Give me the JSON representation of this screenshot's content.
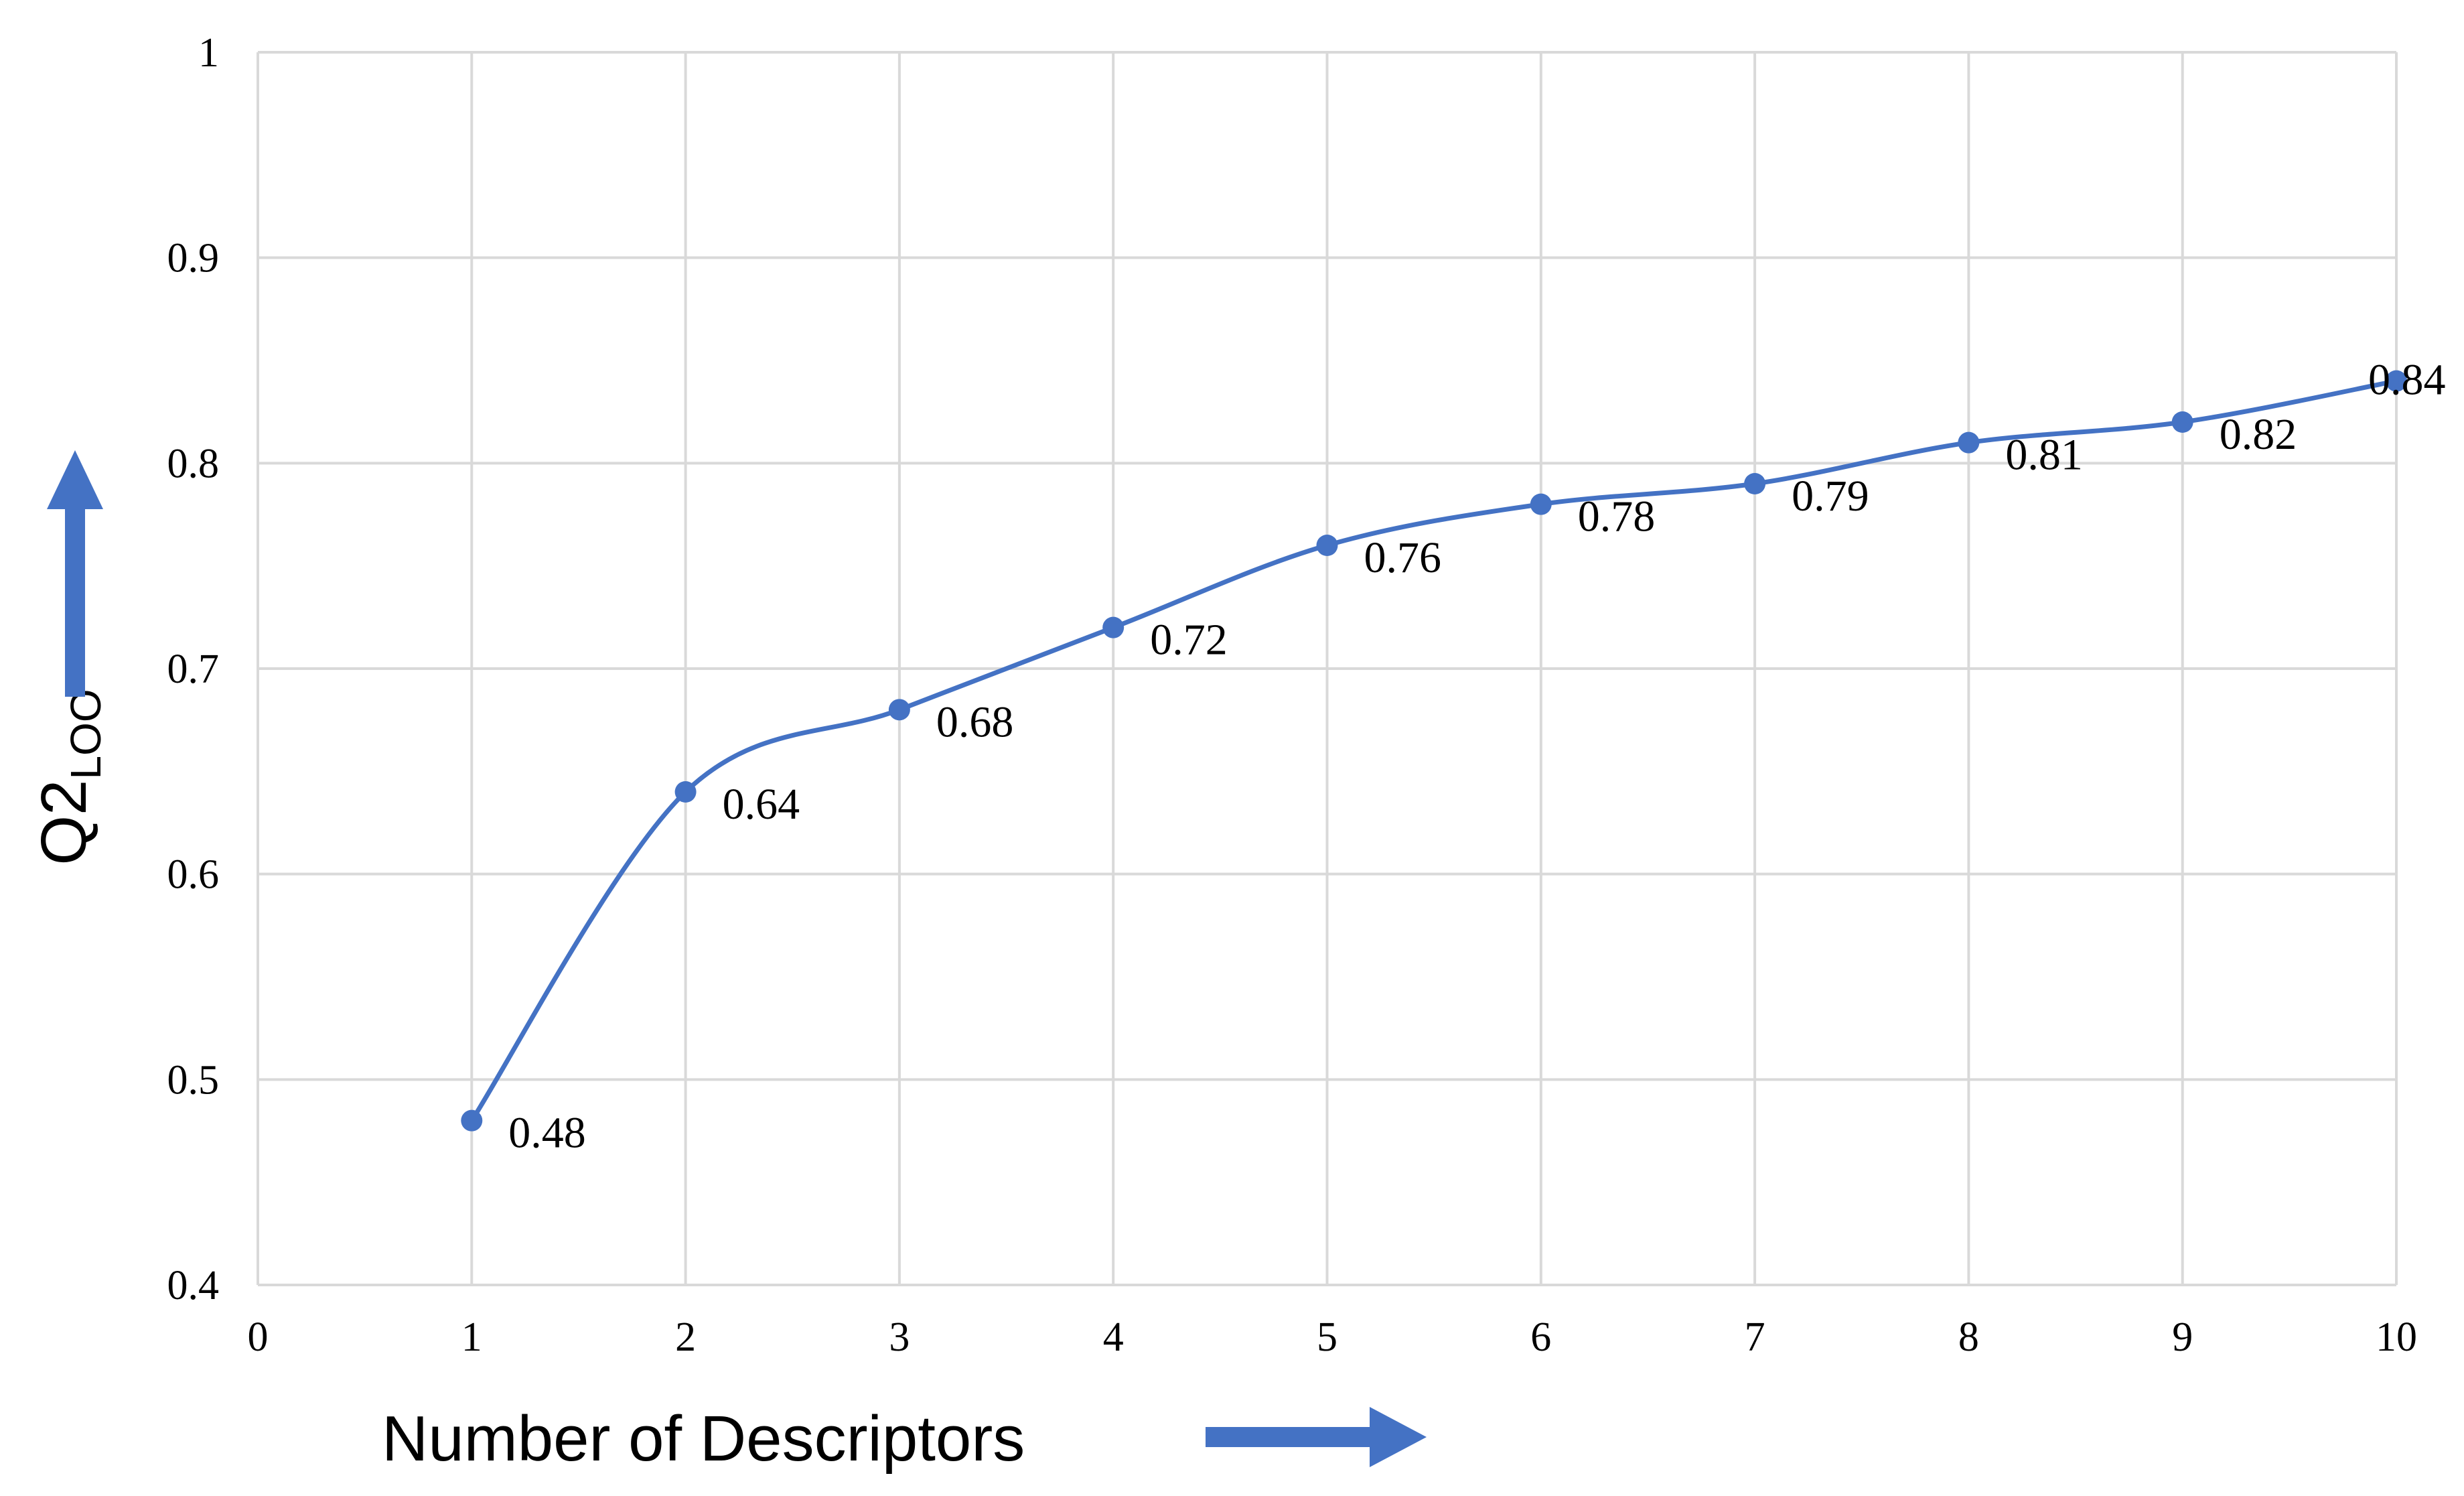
{
  "chart_data": {
    "type": "line",
    "smooth": true,
    "marker": "circle",
    "xlabel": "Number of Descriptors",
    "ylabel": {
      "main": "Q2",
      "subscript": "LOO"
    },
    "xlim": [
      0,
      10
    ],
    "ylim": [
      0.4,
      1
    ],
    "x_ticks": [
      "0",
      "1",
      "2",
      "3",
      "4",
      "5",
      "6",
      "7",
      "8",
      "9",
      "10"
    ],
    "y_ticks": [
      "0.4",
      "0.5",
      "0.6",
      "0.7",
      "0.8",
      "0.9",
      "1"
    ],
    "grid": true,
    "x": [
      1,
      2,
      3,
      4,
      5,
      6,
      7,
      8,
      9,
      10
    ],
    "series": [
      {
        "values": [
          0.48,
          0.64,
          0.68,
          0.72,
          0.76,
          0.78,
          0.79,
          0.81,
          0.82,
          0.84
        ],
        "labels": [
          "0.48",
          "0.64",
          "0.68",
          "0.72",
          "0.76",
          "0.78",
          "0.79",
          "0.81",
          "0.82",
          "0.84"
        ]
      }
    ],
    "colors": {
      "series": "#4472C4",
      "grid": "#D9D9D9",
      "arrows": "#4472C4"
    }
  }
}
